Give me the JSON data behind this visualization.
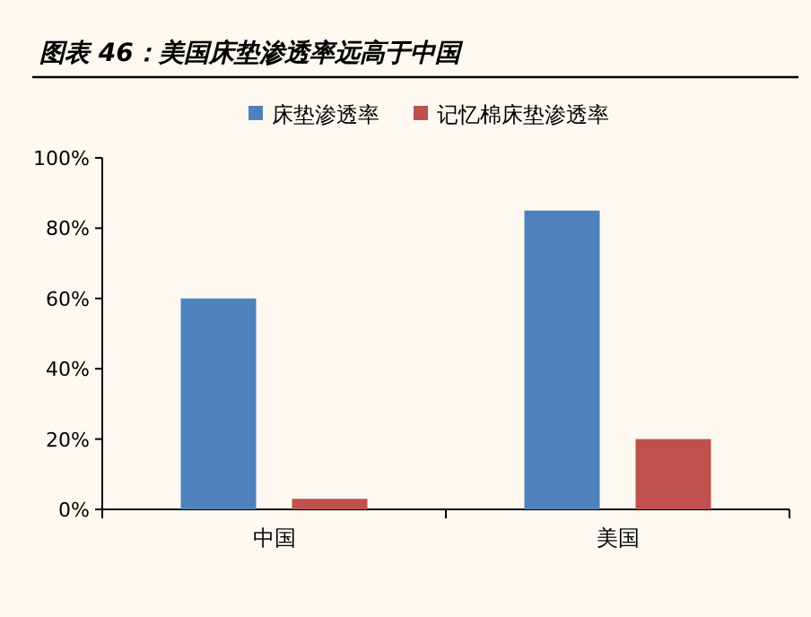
{
  "chart_data": {
    "type": "bar",
    "title": "图表 46：美国床垫渗透率远高于中国",
    "categories": [
      "中国",
      "美国"
    ],
    "series": [
      {
        "name": "床垫渗透率",
        "color": "#4f81bd",
        "values": [
          60,
          85
        ]
      },
      {
        "name": "记忆棉床垫渗透率",
        "color": "#c0504d",
        "values": [
          3,
          20
        ]
      }
    ],
    "ylim": [
      0,
      100
    ],
    "yticks": [
      {
        "value": 0,
        "label": "0%"
      },
      {
        "value": 20,
        "label": "20%"
      },
      {
        "value": 40,
        "label": "40%"
      },
      {
        "value": 60,
        "label": "60%"
      },
      {
        "value": 80,
        "label": "80%"
      },
      {
        "value": 100,
        "label": "100%"
      }
    ],
    "legend": "top",
    "grid": false
  }
}
